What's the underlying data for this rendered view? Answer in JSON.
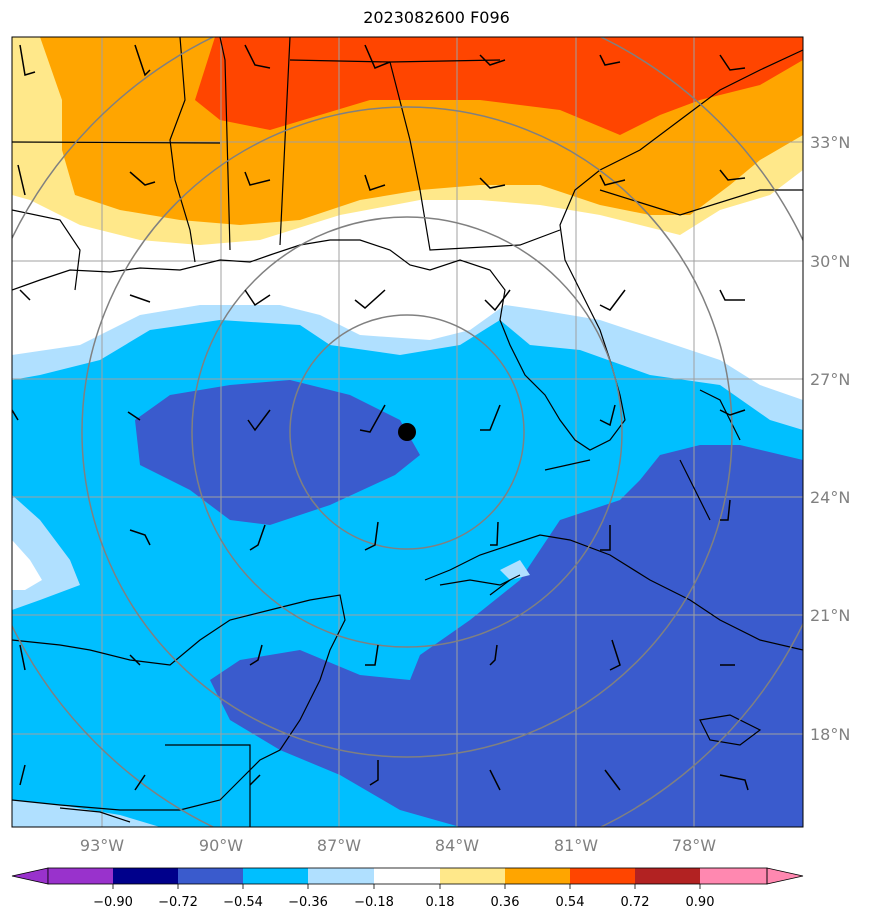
{
  "title": "2023082600 F096",
  "lat_labels": [
    "33°N",
    "30°N",
    "27°N",
    "24°N",
    "21°N",
    "18°N"
  ],
  "lon_labels": [
    "93°W",
    "90°W",
    "87°W",
    "84°W",
    "81°W",
    "78°W"
  ],
  "colorbar": {
    "labels": [
      "−0.90",
      "−0.72",
      "−0.54",
      "−0.36",
      "−0.18",
      "0.18",
      "0.36",
      "0.54",
      "0.72",
      "0.90"
    ],
    "colors": [
      "#9932cc",
      "#00008b",
      "#3a5bcd",
      "#00bfff",
      "#b0e0ff",
      "#ffffff",
      "#ffe88a",
      "#ffa500",
      "#ff4500",
      "#b22222",
      "#ff88b0"
    ]
  },
  "map": {
    "center_marker": "black-dot",
    "colors": {
      "white": "#ffffff",
      "light_blue": "#b0e0ff",
      "cyan": "#00bfff",
      "royal": "#3a5bcd",
      "yellow": "#ffe88a",
      "orange": "#ffa500",
      "red": "#ff4500",
      "grid": "#a0a0a0",
      "ring": "#808080"
    }
  }
}
